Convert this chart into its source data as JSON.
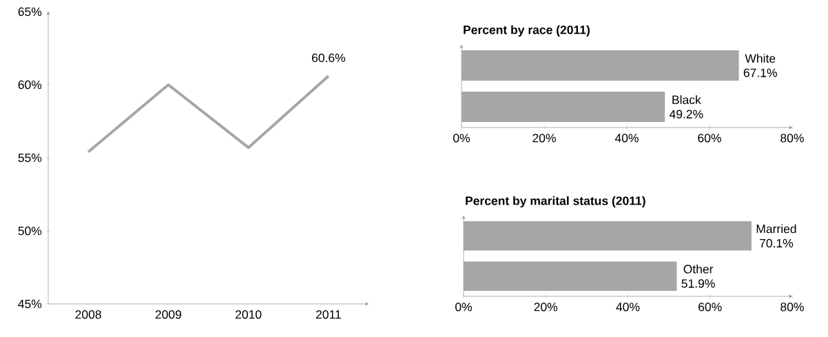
{
  "chart_data": [
    {
      "type": "line",
      "categories": [
        "2008",
        "2009",
        "2010",
        "2011"
      ],
      "values": [
        55.4,
        60.0,
        55.7,
        60.6
      ],
      "color": "#a6a6a6",
      "ylim": [
        45,
        65
      ],
      "yticks": [
        {
          "value": 45,
          "label": "45%"
        },
        {
          "value": 50,
          "label": "50%"
        },
        {
          "value": 55,
          "label": "55%"
        },
        {
          "value": 60,
          "label": "60%"
        },
        {
          "value": 65,
          "label": "65%"
        }
      ],
      "annotations": [
        {
          "text": "60.6%",
          "x": "2011",
          "y": 60.6
        }
      ]
    },
    {
      "type": "bar",
      "orientation": "horizontal",
      "title": "Percent by race (2011)",
      "categories": [
        "White",
        "Black"
      ],
      "values": [
        67.1,
        49.2
      ],
      "value_labels": [
        "67.1%",
        "49.2%"
      ],
      "color": "#a6a6a6",
      "xlim": [
        0,
        80
      ],
      "xticks": [
        {
          "value": 0,
          "label": "0%"
        },
        {
          "value": 20,
          "label": "20%"
        },
        {
          "value": 40,
          "label": "40%"
        },
        {
          "value": 60,
          "label": "60%"
        },
        {
          "value": 80,
          "label": "80%"
        }
      ]
    },
    {
      "type": "bar",
      "orientation": "horizontal",
      "title": "Percent by marital status (2011)",
      "categories": [
        "Married",
        "Other"
      ],
      "values": [
        70.1,
        51.9
      ],
      "value_labels": [
        "70.1%",
        "51.9%"
      ],
      "color": "#a6a6a6",
      "xlim": [
        0,
        80
      ],
      "xticks": [
        {
          "value": 0,
          "label": "0%"
        },
        {
          "value": 20,
          "label": "20%"
        },
        {
          "value": 40,
          "label": "40%"
        },
        {
          "value": 60,
          "label": "60%"
        },
        {
          "value": 80,
          "label": "80%"
        }
      ]
    }
  ]
}
